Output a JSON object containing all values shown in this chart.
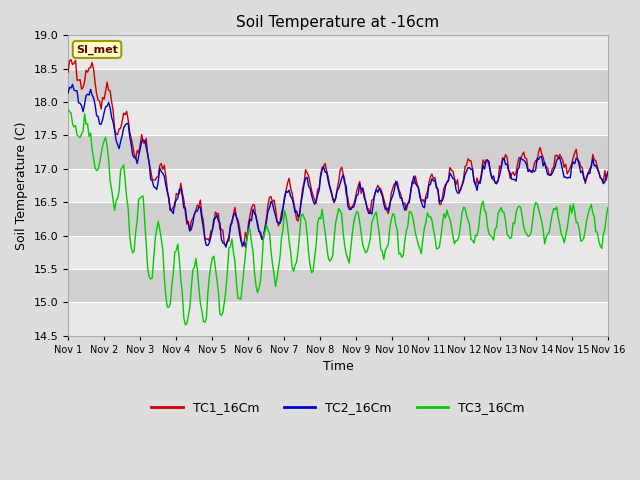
{
  "title": "Soil Temperature at -16cm",
  "xlabel": "Time",
  "ylabel": "Soil Temperature (C)",
  "ylim": [
    14.5,
    19.0
  ],
  "yticks": [
    14.5,
    15.0,
    15.5,
    16.0,
    16.5,
    17.0,
    17.5,
    18.0,
    18.5,
    19.0
  ],
  "x_labels": [
    "Nov 1",
    "Nov 2",
    "Nov 3",
    "Nov 4",
    "Nov 5",
    "Nov 6",
    "Nov 7",
    "Nov 8",
    "Nov 9",
    "Nov 10",
    "Nov 11",
    "Nov 12",
    "Nov 13",
    "Nov 14",
    "Nov 15",
    "Nov 16"
  ],
  "legend_labels": [
    "TC1_16Cm",
    "TC2_16Cm",
    "TC3_16Cm"
  ],
  "line_colors": [
    "#cc0000",
    "#0000cc",
    "#00cc00"
  ],
  "watermark_text": "SI_met",
  "watermark_facecolor": "#ffffcc",
  "watermark_edgecolor": "#999900",
  "watermark_textcolor": "#660000",
  "bg_color": "#dddddd",
  "plot_bg_color": "#dddddd",
  "grid_color": "#ffffff",
  "band_color_light": "#e8e8e8",
  "band_color_dark": "#d0d0d0"
}
